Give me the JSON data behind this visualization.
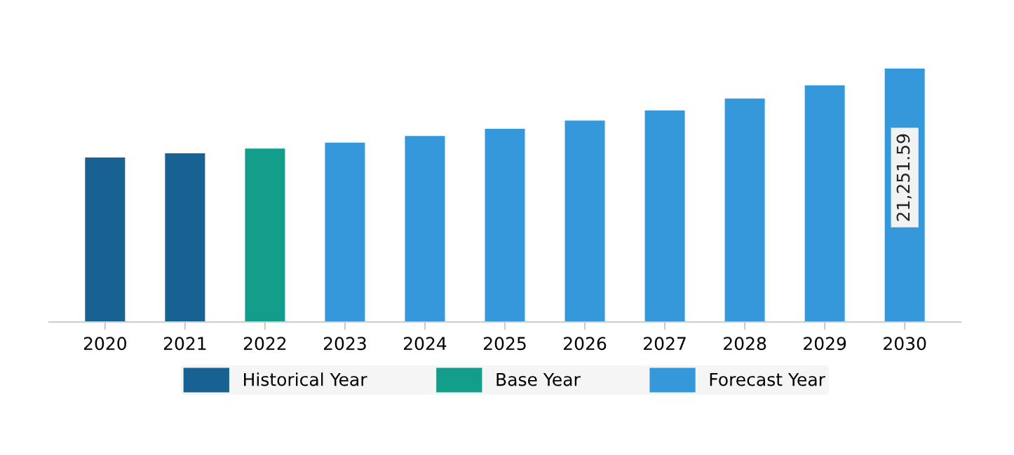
{
  "chart_data": {
    "type": "bar",
    "categories": [
      "2020",
      "2021",
      "2022",
      "2023",
      "2024",
      "2025",
      "2026",
      "2027",
      "2028",
      "2029",
      "2030"
    ],
    "series": [
      {
        "name": "Historical Year",
        "color": "#176293",
        "values": [
          13800,
          14150,
          null,
          null,
          null,
          null,
          null,
          null,
          null,
          null,
          null
        ]
      },
      {
        "name": "Base Year",
        "color": "#129e8a",
        "values": [
          null,
          null,
          14550,
          null,
          null,
          null,
          null,
          null,
          null,
          null,
          null
        ]
      },
      {
        "name": "Forecast Year",
        "color": "#3498da",
        "values": [
          null,
          null,
          null,
          15050,
          15600,
          16200,
          16900,
          17750,
          18750,
          19850,
          21251.59
        ],
        "value_labels": [
          null,
          null,
          null,
          null,
          null,
          null,
          null,
          null,
          null,
          null,
          "21,251.59"
        ]
      }
    ],
    "legend": "bottom",
    "grid": false
  }
}
